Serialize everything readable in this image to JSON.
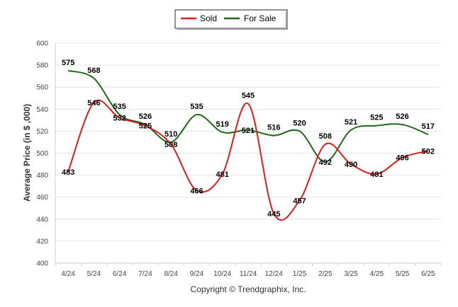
{
  "chart_data": {
    "type": "line",
    "title": "",
    "xlabel": "",
    "ylabel": "Average Price (in $ ,000)",
    "categories": [
      "4/24",
      "5/24",
      "6/24",
      "7/24",
      "8/24",
      "9/24",
      "10/24",
      "11/24",
      "12/24",
      "1/25",
      "2/25",
      "3/25",
      "4/25",
      "5/25",
      "6/25"
    ],
    "ylim": [
      400,
      600
    ],
    "yticks": [
      400,
      420,
      440,
      460,
      480,
      500,
      520,
      540,
      560,
      580,
      600
    ],
    "grid": true,
    "legend_position": "top-center",
    "series": [
      {
        "name": "Sold",
        "color": "#e31a1c",
        "values": [
          483,
          546,
          532,
          525,
          508,
          466,
          481,
          545,
          445,
          457,
          508,
          490,
          481,
          496,
          502
        ]
      },
      {
        "name": "For Sale",
        "color": "#1a6b12",
        "values": [
          575,
          568,
          535,
          526,
          510,
          535,
          519,
          521,
          516,
          520,
          492,
          521,
          525,
          526,
          517
        ]
      }
    ],
    "footer": "Copyright © Trendgraphix, Inc."
  }
}
